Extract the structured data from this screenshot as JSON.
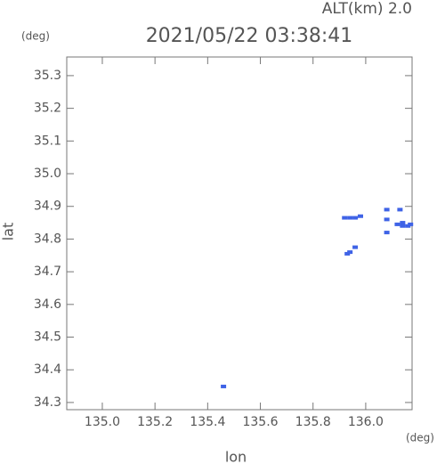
{
  "chart_data": {
    "type": "scatter",
    "title": "2021/05/22 03:38:41",
    "subtitle": "ALT(km) 2.0",
    "x_label": "lon",
    "y_label": "lat",
    "x_unit": "(deg)",
    "y_unit": "(deg)",
    "color": "#3f63e6",
    "x": [
      135.46,
      135.92,
      135.94,
      135.96,
      135.98,
      135.93,
      135.94,
      135.96,
      136.08,
      136.13,
      136.08,
      136.08,
      136.12,
      136.14,
      136.16,
      136.17,
      136.14
    ],
    "y": [
      34.349,
      34.865,
      34.865,
      34.865,
      34.87,
      34.755,
      34.76,
      34.775,
      34.89,
      34.89,
      34.86,
      34.82,
      34.845,
      34.84,
      34.84,
      34.845,
      34.85
    ],
    "xlim": [
      134.865,
      136.176
    ],
    "ylim": [
      34.278,
      35.357
    ],
    "xticks": [
      {
        "value": 135.0,
        "label": "135.0"
      },
      {
        "value": 135.2,
        "label": "135.2"
      },
      {
        "value": 135.4,
        "label": "135.4"
      },
      {
        "value": 135.6,
        "label": "135.6"
      },
      {
        "value": 135.8,
        "label": "135.8"
      },
      {
        "value": 136.0,
        "label": "136.0"
      }
    ],
    "yticks": [
      {
        "value": 34.3,
        "label": "34.3"
      },
      {
        "value": 34.4,
        "label": "34.4"
      },
      {
        "value": 34.5,
        "label": "34.5"
      },
      {
        "value": 34.6,
        "label": "34.6"
      },
      {
        "value": 34.7,
        "label": "34.7"
      },
      {
        "value": 34.8,
        "label": "34.8"
      },
      {
        "value": 34.9,
        "label": "34.9"
      },
      {
        "value": 35.0,
        "label": "35.0"
      },
      {
        "value": 35.1,
        "label": "35.1"
      },
      {
        "value": 35.2,
        "label": "35.2"
      },
      {
        "value": 35.3,
        "label": "35.3"
      }
    ]
  }
}
